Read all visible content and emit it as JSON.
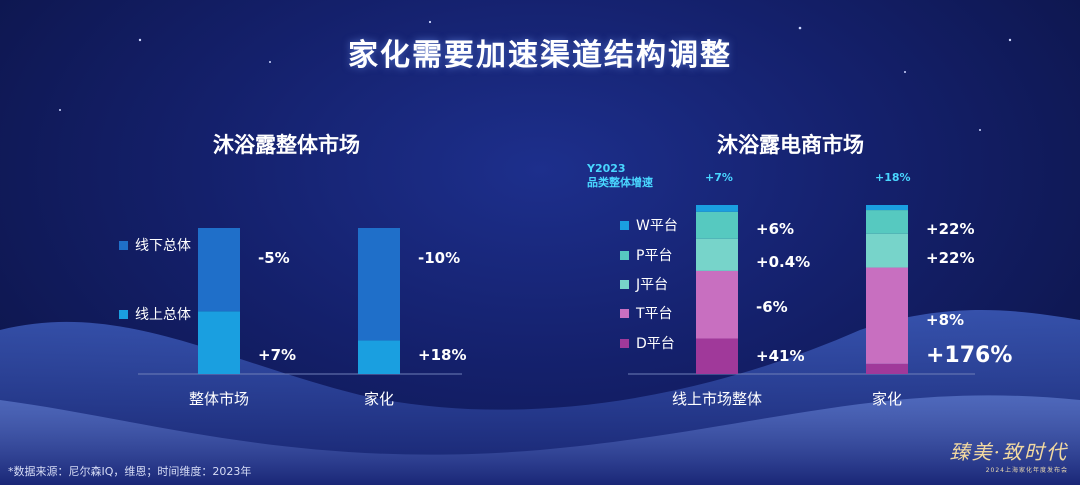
{
  "title": "家化需要加速渠道结构调整",
  "note": "*数据来源：尼尔森IQ，维恩；时间维度：2023年",
  "logo": {
    "main": "臻美·致时代",
    "sub": "2024上海家化年度发布会"
  },
  "colors": {
    "offline": "#1f6fc9",
    "online": "#1a9fe0",
    "W": "#1a9fe0",
    "P": "#56c9c0",
    "J": "#77d4ca",
    "T": "#c86fc0",
    "D": "#a0399a"
  },
  "left_chart": {
    "title": "沐浴露整体市场"
  },
  "right_chart": {
    "title": "沐浴露电商市场",
    "y2023_label": [
      "Y2023",
      "品类整体增速"
    ]
  },
  "chart_data": [
    {
      "type": "bar",
      "stacked": true,
      "title": "沐浴露整体市场",
      "categories": [
        "整体市场",
        "家化"
      ],
      "series": [
        {
          "name": "线上总体",
          "key": "online",
          "shares": [
            0.43,
            0.23
          ],
          "growth_labels": [
            "+7%",
            "+18%"
          ]
        },
        {
          "name": "线下总体",
          "key": "offline",
          "shares": [
            0.57,
            0.77
          ],
          "growth_labels": [
            "-5%",
            "-10%"
          ]
        }
      ],
      "legend": [
        "线下总体",
        "线上总体"
      ],
      "legend_position": "left"
    },
    {
      "type": "bar",
      "stacked": true,
      "title": "沐浴露电商市场",
      "categories": [
        "线上市场整体",
        "家化"
      ],
      "totals": [
        "+7%",
        "+18%"
      ],
      "series": [
        {
          "name": "D平台",
          "key": "D",
          "shares": [
            0.21,
            0.06
          ],
          "growth_labels": [
            "+41%",
            "+176%"
          ]
        },
        {
          "name": "T平台",
          "key": "T",
          "shares": [
            0.4,
            0.57
          ],
          "growth_labels": [
            "-6%",
            "+8%"
          ]
        },
        {
          "name": "J平台",
          "key": "J",
          "shares": [
            0.19,
            0.2
          ],
          "growth_labels": [
            "+0.4%",
            "+22%"
          ]
        },
        {
          "name": "P平台",
          "key": "P",
          "shares": [
            0.16,
            0.14
          ],
          "growth_labels": [
            "+6%",
            "+22%"
          ]
        },
        {
          "name": "W平台",
          "key": "W",
          "shares": [
            0.04,
            0.03
          ],
          "growth_labels": [
            "",
            ""
          ]
        }
      ],
      "legend": [
        "W平台",
        "P平台",
        "J平台",
        "T平台",
        "D平台"
      ],
      "legend_position": "left"
    }
  ]
}
